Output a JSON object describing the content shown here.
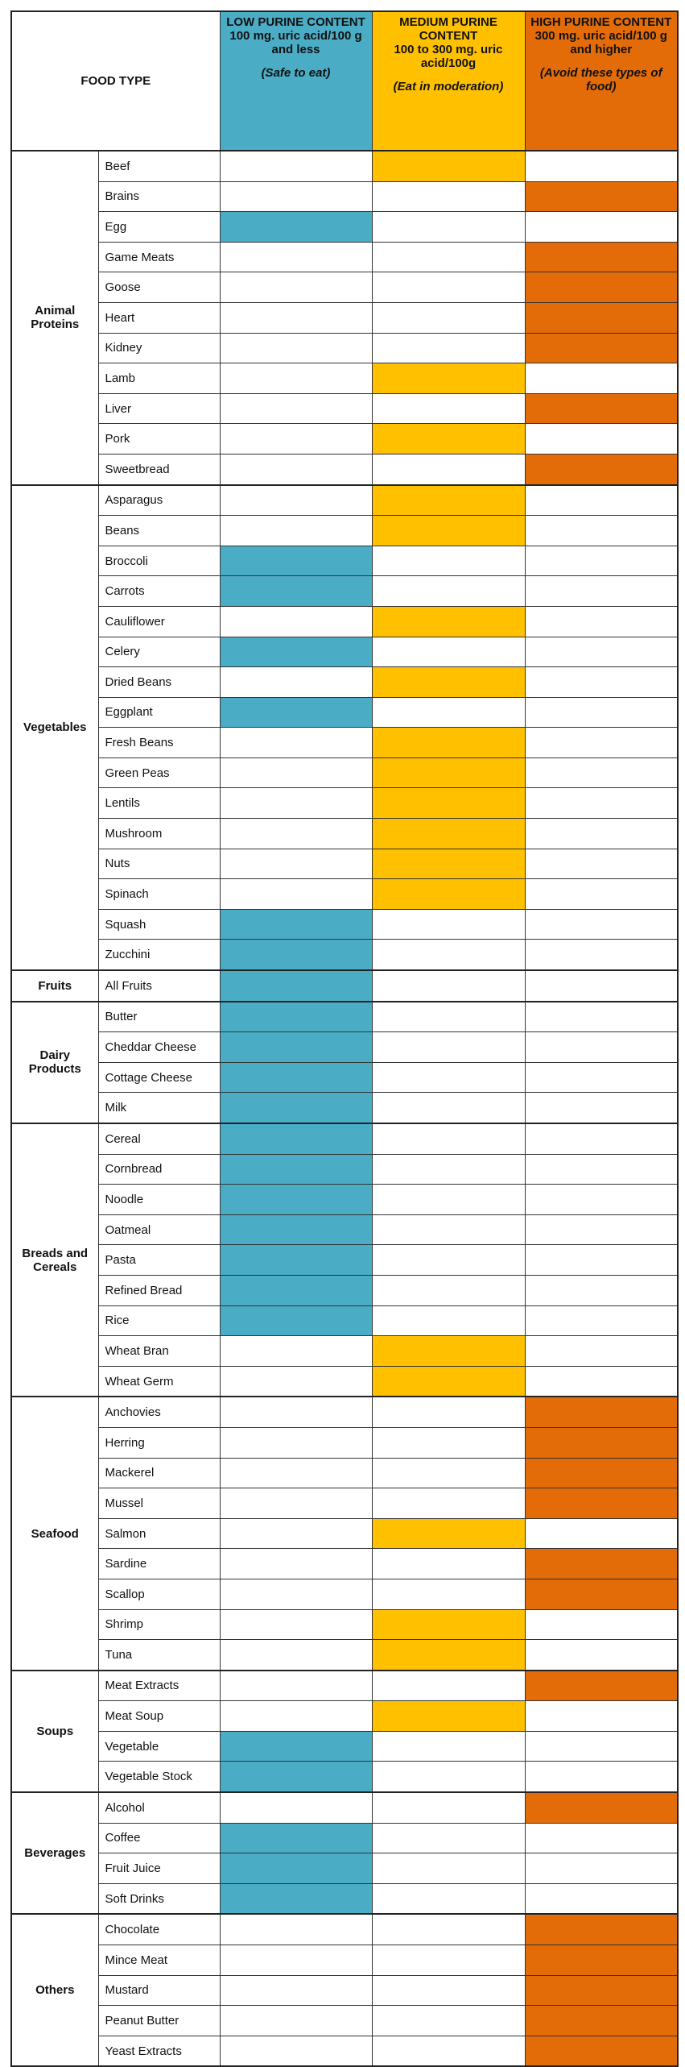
{
  "header": {
    "food_type": "FOOD TYPE",
    "columns": [
      {
        "level": "low",
        "title": "LOW PURINE CONTENT",
        "detail": "100 mg. uric acid/100 g and less",
        "note": "(Safe to eat)",
        "color": "#4bacc6"
      },
      {
        "level": "medium",
        "title": "MEDIUM PURINE CONTENT",
        "detail": "100 to 300 mg. uric acid/100g",
        "note": "(Eat in moderation)",
        "color": "#ffc000"
      },
      {
        "level": "high",
        "title": "HIGH PURINE CONTENT",
        "detail": "300 mg. uric acid/100 g and higher",
        "note": "(Avoid these types of food)",
        "color": "#e36c09"
      }
    ]
  },
  "groups": [
    {
      "name": "Animal Proteins",
      "items": [
        {
          "food": "Beef",
          "level": "medium"
        },
        {
          "food": "Brains",
          "level": "high"
        },
        {
          "food": "Egg",
          "level": "low"
        },
        {
          "food": "Game Meats",
          "level": "high"
        },
        {
          "food": "Goose",
          "level": "high"
        },
        {
          "food": "Heart",
          "level": "high"
        },
        {
          "food": "Kidney",
          "level": "high"
        },
        {
          "food": "Lamb",
          "level": "medium"
        },
        {
          "food": "Liver",
          "level": "high"
        },
        {
          "food": "Pork",
          "level": "medium"
        },
        {
          "food": "Sweetbread",
          "level": "high"
        }
      ]
    },
    {
      "name": "Vegetables",
      "items": [
        {
          "food": "Asparagus",
          "level": "medium"
        },
        {
          "food": "Beans",
          "level": "medium"
        },
        {
          "food": "Broccoli",
          "level": "low"
        },
        {
          "food": "Carrots",
          "level": "low"
        },
        {
          "food": "Cauliflower",
          "level": "medium"
        },
        {
          "food": "Celery",
          "level": "low"
        },
        {
          "food": "Dried Beans",
          "level": "medium"
        },
        {
          "food": "Eggplant",
          "level": "low"
        },
        {
          "food": "Fresh Beans",
          "level": "medium"
        },
        {
          "food": "Green Peas",
          "level": "medium"
        },
        {
          "food": "Lentils",
          "level": "medium"
        },
        {
          "food": "Mushroom",
          "level": "medium"
        },
        {
          "food": "Nuts",
          "level": "medium"
        },
        {
          "food": "Spinach",
          "level": "medium"
        },
        {
          "food": "Squash",
          "level": "low"
        },
        {
          "food": "Zucchini",
          "level": "low"
        }
      ]
    },
    {
      "name": "Fruits",
      "items": [
        {
          "food": "All Fruits",
          "level": "low"
        }
      ]
    },
    {
      "name": "Dairy Products",
      "items": [
        {
          "food": "Butter",
          "level": "low"
        },
        {
          "food": "Cheddar Cheese",
          "level": "low"
        },
        {
          "food": "Cottage Cheese",
          "level": "low"
        },
        {
          "food": "Milk",
          "level": "low"
        }
      ]
    },
    {
      "name": "Breads and Cereals",
      "items": [
        {
          "food": "Cereal",
          "level": "low"
        },
        {
          "food": "Cornbread",
          "level": "low"
        },
        {
          "food": "Noodle",
          "level": "low"
        },
        {
          "food": "Oatmeal",
          "level": "low"
        },
        {
          "food": "Pasta",
          "level": "low"
        },
        {
          "food": "Refined Bread",
          "level": "low"
        },
        {
          "food": "Rice",
          "level": "low"
        },
        {
          "food": "Wheat Bran",
          "level": "medium"
        },
        {
          "food": "Wheat Germ",
          "level": "medium"
        }
      ]
    },
    {
      "name": "Seafood",
      "items": [
        {
          "food": "Anchovies",
          "level": "high"
        },
        {
          "food": "Herring",
          "level": "high"
        },
        {
          "food": "Mackerel",
          "level": "high"
        },
        {
          "food": "Mussel",
          "level": "high"
        },
        {
          "food": "Salmon",
          "level": "medium"
        },
        {
          "food": "Sardine",
          "level": "high"
        },
        {
          "food": "Scallop",
          "level": "high"
        },
        {
          "food": "Shrimp",
          "level": "medium"
        },
        {
          "food": "Tuna",
          "level": "medium"
        }
      ]
    },
    {
      "name": "Soups",
      "items": [
        {
          "food": "Meat Extracts",
          "level": "high"
        },
        {
          "food": "Meat Soup",
          "level": "medium"
        },
        {
          "food": "Vegetable",
          "level": "low"
        },
        {
          "food": "Vegetable Stock",
          "level": "low"
        }
      ]
    },
    {
      "name": "Beverages",
      "items": [
        {
          "food": "Alcohol",
          "level": "high"
        },
        {
          "food": "Coffee",
          "level": "low"
        },
        {
          "food": "Fruit Juice",
          "level": "low"
        },
        {
          "food": "Soft Drinks",
          "level": "low"
        }
      ]
    },
    {
      "name": "Others",
      "items": [
        {
          "food": "Chocolate",
          "level": "high"
        },
        {
          "food": "Mince Meat",
          "level": "high"
        },
        {
          "food": "Mustard",
          "level": "high"
        },
        {
          "food": "Peanut Butter",
          "level": "high"
        },
        {
          "food": "Yeast Extracts",
          "level": "high"
        }
      ]
    }
  ]
}
